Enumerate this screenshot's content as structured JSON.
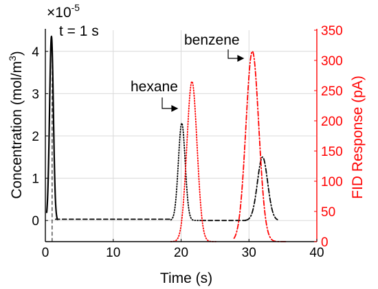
{
  "chart_data": {
    "type": "line",
    "xlabel": "Time (s)",
    "ylabel_left": "Concentration (mol/m",
    "ylabel_left_sup": "3",
    "ylabel_left_close": ")",
    "ylabel_right": "FID Response (pA)",
    "exponent_label": "×10",
    "exponent_power": "-5",
    "xlim": [
      0,
      40
    ],
    "ylim_left": [
      -0.5,
      4.5
    ],
    "ylim_right": [
      0,
      350
    ],
    "x_ticks": [
      0,
      10,
      20,
      30,
      40
    ],
    "y_left_ticks": [
      0,
      1,
      2,
      3,
      4
    ],
    "y_right_ticks": [
      0,
      50,
      100,
      150,
      200,
      250,
      300,
      350
    ],
    "grid": true,
    "annotations": {
      "injection": "t = 1 s",
      "hexane": "hexane",
      "benzene": "benzene"
    },
    "colors": {
      "left_axis": "#000000",
      "right_axis": "#ff0000",
      "grid": "#d9d9d9"
    },
    "series": [
      {
        "axis": "left",
        "style": "solid",
        "color": "#000000",
        "peaks": [
          {
            "center": 0.9,
            "height": 4.35,
            "width": 0.28
          }
        ],
        "range": [
          0.2,
          1.8
        ]
      },
      {
        "axis": "left",
        "style": "dashed",
        "color": "#000000",
        "baseline": 0.03,
        "range": [
          1.5,
          18.5
        ]
      },
      {
        "axis": "left",
        "style": "dotted",
        "color": "#000000",
        "peaks": [
          {
            "center": 20.1,
            "height": 2.3,
            "width": 0.5
          }
        ],
        "range": [
          18.5,
          23.0
        ]
      },
      {
        "axis": "left",
        "style": "dashed",
        "color": "#000000",
        "baseline": 0.0,
        "range": [
          23.0,
          29.5
        ]
      },
      {
        "axis": "left",
        "style": "dashdot",
        "color": "#000000",
        "peaks": [
          {
            "center": 32.0,
            "height": 1.5,
            "width": 0.75
          }
        ],
        "range": [
          29.5,
          34.2
        ]
      },
      {
        "axis": "right",
        "style": "dotted",
        "color": "#ff0000",
        "peaks": [
          {
            "center": 21.6,
            "height": 265,
            "width": 0.75
          }
        ],
        "range": [
          18.5,
          25.2
        ]
      },
      {
        "axis": "right",
        "style": "dashdot",
        "color": "#ff0000",
        "peaks": [
          {
            "center": 30.5,
            "height": 315,
            "width": 0.95
          }
        ],
        "range": [
          27.8,
          35.5
        ]
      },
      {
        "axis": "left",
        "style": "thin-dashed",
        "color": "#000000",
        "vline_x": 1.0,
        "range": [
          -0.5,
          4.3
        ]
      }
    ]
  }
}
